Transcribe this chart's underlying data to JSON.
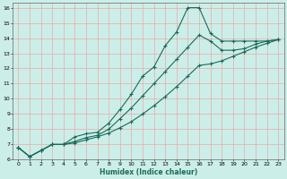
{
  "xlabel": "Humidex (Indice chaleur)",
  "bg_color": "#cceee8",
  "grid_color": "#e8aaaa",
  "line_color": "#1a6b5a",
  "xlim": [
    -0.5,
    23.5
  ],
  "ylim": [
    6,
    16.3
  ],
  "xticks": [
    0,
    1,
    2,
    3,
    4,
    5,
    6,
    7,
    8,
    9,
    10,
    11,
    12,
    13,
    14,
    15,
    16,
    17,
    18,
    19,
    20,
    21,
    22,
    23
  ],
  "yticks": [
    6,
    7,
    8,
    9,
    10,
    11,
    12,
    13,
    14,
    15,
    16
  ],
  "line1_x": [
    0,
    1,
    2,
    3,
    4,
    5,
    6,
    7,
    8,
    9,
    10,
    11,
    12,
    13,
    14,
    15,
    16,
    17,
    18,
    19,
    20,
    21,
    22,
    23
  ],
  "line1_y": [
    6.8,
    6.2,
    6.6,
    7.0,
    7.0,
    7.5,
    7.7,
    7.8,
    8.4,
    9.3,
    10.3,
    11.5,
    12.1,
    13.5,
    14.4,
    16.0,
    16.0,
    14.3,
    13.8,
    13.8,
    13.8,
    13.8,
    13.8,
    13.9
  ],
  "line2_x": [
    0,
    1,
    2,
    3,
    4,
    5,
    6,
    7,
    8,
    9,
    10,
    11,
    12,
    13,
    14,
    15,
    16,
    17,
    18,
    19,
    20,
    21,
    22,
    23
  ],
  "line2_y": [
    6.8,
    6.2,
    6.6,
    7.0,
    7.0,
    7.2,
    7.45,
    7.6,
    8.0,
    8.7,
    9.4,
    10.2,
    11.0,
    11.8,
    12.6,
    13.4,
    14.2,
    13.8,
    13.2,
    13.2,
    13.3,
    13.6,
    13.8,
    13.9
  ],
  "line3_x": [
    0,
    1,
    2,
    3,
    4,
    5,
    6,
    7,
    8,
    9,
    10,
    11,
    12,
    13,
    14,
    15,
    16,
    17,
    18,
    19,
    20,
    21,
    22,
    23
  ],
  "line3_y": [
    6.8,
    6.2,
    6.6,
    7.0,
    7.0,
    7.1,
    7.3,
    7.5,
    7.75,
    8.1,
    8.5,
    9.0,
    9.55,
    10.15,
    10.8,
    11.5,
    12.2,
    12.3,
    12.5,
    12.8,
    13.1,
    13.4,
    13.65,
    13.9
  ]
}
